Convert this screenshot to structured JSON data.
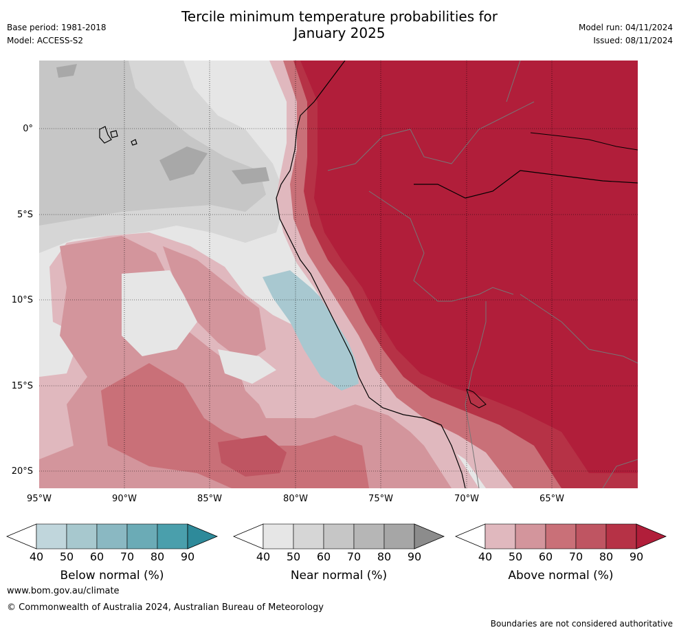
{
  "header": {
    "title_line1": "Tercile minimum temperature probabilities for",
    "title_line2": "January 2025",
    "base_period": "Base period: 1981-2018",
    "model": "Model: ACCESS-S2",
    "model_run": "Model run: 04/11/2024",
    "issued": "Issued: 08/11/2024"
  },
  "map": {
    "lat_labels": [
      "0°",
      "5°S",
      "10°S",
      "15°S",
      "20°S"
    ],
    "lon_labels": [
      "95°W",
      "90°W",
      "85°W",
      "80°W",
      "75°W",
      "70°W",
      "65°W"
    ],
    "colors": {
      "ocean_near_light": "#e6e6e6",
      "ocean_near": "#d6d6d6",
      "ocean_near_mid": "#c6c6c6",
      "ocean_near_dark": "#a8a8a8",
      "below_light": "#a8c8d0",
      "above_40": "#e0b8be",
      "above_50": "#d3959c",
      "above_60": "#c97078",
      "above_70": "#bf5562",
      "above_80": "#b63246",
      "above_90": "#b11e3a"
    }
  },
  "colorbars": [
    {
      "name": "below",
      "title": "Below normal (%)",
      "ticks": [
        "40",
        "50",
        "60",
        "70",
        "80",
        "90"
      ],
      "colors": [
        "#c0d6dc",
        "#a7c8ce",
        "#8ab8c2",
        "#6babb6",
        "#4a9fac",
        "#2e8a9a"
      ]
    },
    {
      "name": "near",
      "title": "Near normal (%)",
      "ticks": [
        "40",
        "50",
        "60",
        "70",
        "80",
        "90"
      ],
      "colors": [
        "#e6e6e6",
        "#d6d6d6",
        "#c6c6c6",
        "#b6b6b6",
        "#a6a6a6",
        "#8c8c8c"
      ]
    },
    {
      "name": "above",
      "title": "Above normal (%)",
      "ticks": [
        "40",
        "50",
        "60",
        "70",
        "80",
        "90"
      ],
      "colors": [
        "#e0b8be",
        "#d3959c",
        "#c97078",
        "#bf5562",
        "#b63246",
        "#b11e3a"
      ]
    }
  ],
  "footer": {
    "website": "www.bom.gov.au/climate",
    "copyright": "© Commonwealth of Australia 2024, Australian Bureau of Meteorology",
    "disclaimer": "Boundaries are not considered authoritative"
  }
}
